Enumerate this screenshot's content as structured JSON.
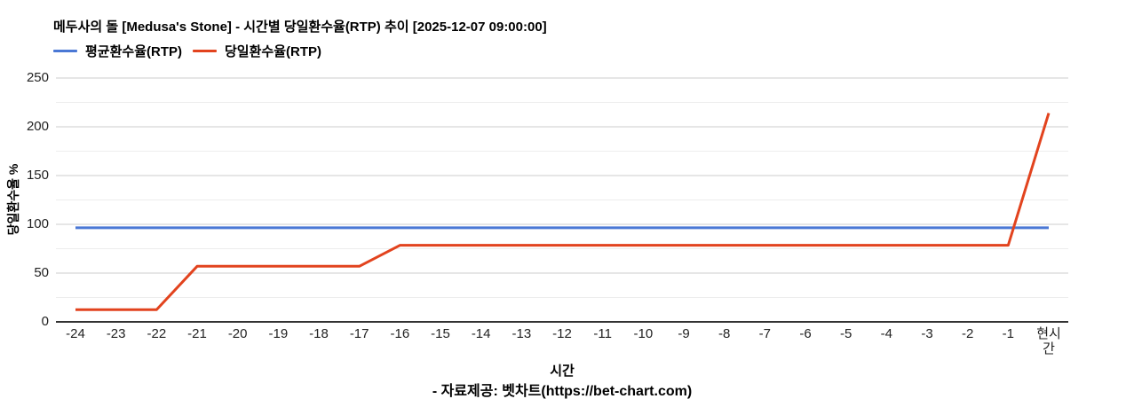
{
  "header": {
    "title": "메두사의 돌 [Medusa's Stone] - 시간별 당일환수율(RTP) 추이 [2025-12-07 09:00:00]"
  },
  "legend": {
    "items": [
      {
        "label": "평균환수율(RTP)",
        "color": "#4a78d5"
      },
      {
        "label": "당일환수율(RTP)",
        "color": "#e2431e"
      }
    ]
  },
  "footer": {
    "source": "- 자료제공: 벳차트(https://bet-chart.com)"
  },
  "chart_data": {
    "type": "line",
    "title": "메두사의 돌 [Medusa's Stone] - 시간별 당일환수율(RTP) 추이 [2025-12-07 09:00:00]",
    "xlabel": "시간",
    "ylabel": "당일환수율 %",
    "categories": [
      "-24",
      "-23",
      "-22",
      "-21",
      "-20",
      "-19",
      "-18",
      "-17",
      "-16",
      "-15",
      "-14",
      "-13",
      "-12",
      "-11",
      "-10",
      "-9",
      "-8",
      "-7",
      "-6",
      "-5",
      "-4",
      "-3",
      "-2",
      "-1",
      "현시간"
    ],
    "series": [
      {
        "name": "평균환수율(RTP)",
        "color": "#4a78d5",
        "values": [
          96.5,
          96.5,
          96.5,
          96.5,
          96.5,
          96.5,
          96.5,
          96.5,
          96.5,
          96.5,
          96.5,
          96.5,
          96.5,
          96.5,
          96.5,
          96.5,
          96.5,
          96.5,
          96.5,
          96.5,
          96.5,
          96.5,
          96.5,
          96.5,
          96.5
        ]
      },
      {
        "name": "당일환수율(RTP)",
        "color": "#e2431e",
        "values": [
          12.5,
          12.5,
          12.5,
          57,
          57,
          57,
          57,
          57,
          78.5,
          78.5,
          78.5,
          78.5,
          78.5,
          78.5,
          78.5,
          78.5,
          78.5,
          78.5,
          78.5,
          78.5,
          78.5,
          78.5,
          78.5,
          78.5,
          214
        ]
      }
    ],
    "ylim": [
      0,
      250
    ],
    "ytick_step": 50,
    "minor_ytick_step": 25,
    "grid": true,
    "legend_position": "top-left",
    "colors": {
      "grid_major": "#cccccc",
      "grid_minor": "#ededed",
      "baseline": "#333333",
      "tick_text": "#222222"
    }
  }
}
